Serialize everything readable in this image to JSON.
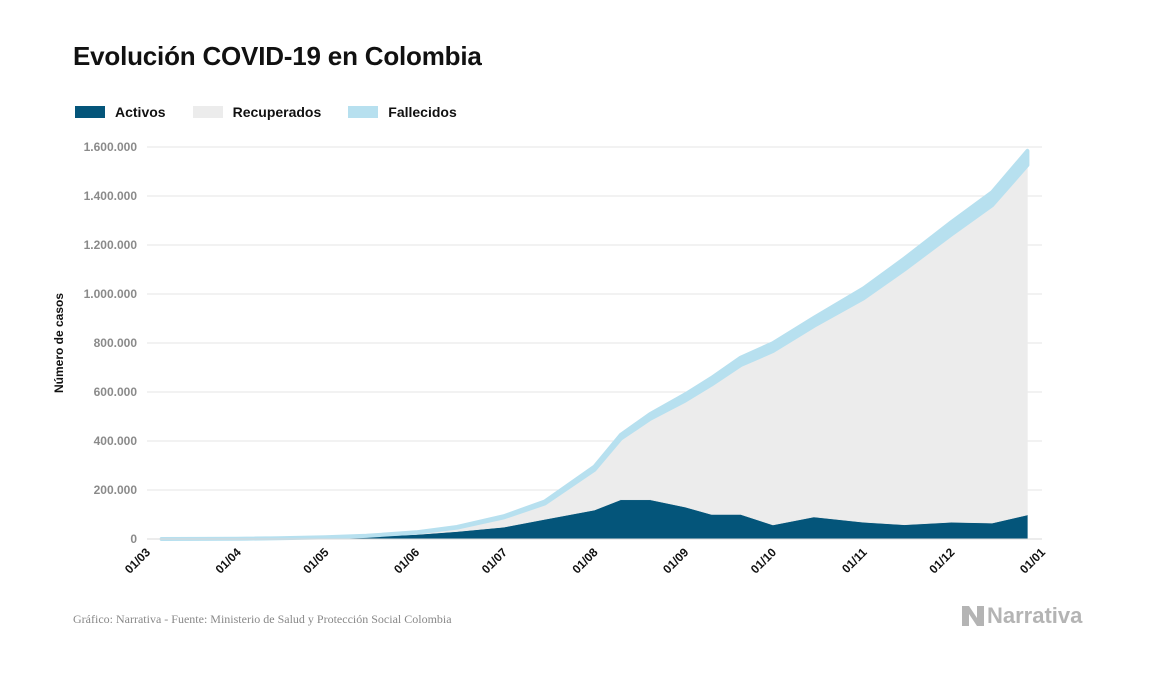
{
  "header": {
    "title": "Evolución COVID-19 en Colombia"
  },
  "legend": [
    {
      "label": "Activos",
      "color": "#04557a"
    },
    {
      "label": "Recuperados",
      "color": "#ececec"
    },
    {
      "label": "Fallecidos",
      "color": "#b7e0ef"
    }
  ],
  "footer": {
    "source": "Gráfico: Narrativa - Fuente: Ministerio de Salud y Protección Social Colombia"
  },
  "brand": {
    "name": "Narrativa",
    "icon": "narrativa-logo-icon"
  },
  "chart_data": {
    "type": "area",
    "title": "Evolución COVID-19 en Colombia",
    "xlabel": "",
    "ylabel": "Número de casos",
    "stacked": true,
    "grid": true,
    "legend_position": "top-left",
    "ylim": [
      0,
      1600000
    ],
    "xlim": [
      "2020-03-01",
      "2021-01-01"
    ],
    "yticks": [
      0,
      200000,
      400000,
      600000,
      800000,
      1000000,
      1200000,
      1400000,
      1600000
    ],
    "ytick_labels": [
      "0",
      "200.000",
      "400.000",
      "600.000",
      "800.000",
      "1.000.000",
      "1.200.000",
      "1.400.000",
      "1.600.000"
    ],
    "xticks": [
      "2020-03-01",
      "2020-04-01",
      "2020-05-01",
      "2020-06-01",
      "2020-07-01",
      "2020-08-01",
      "2020-09-01",
      "2020-10-01",
      "2020-11-01",
      "2020-12-01",
      "2021-01-01"
    ],
    "xtick_labels": [
      "01/03",
      "01/04",
      "01/05",
      "01/06",
      "01/07",
      "01/08",
      "01/09",
      "01/10",
      "01/11",
      "01/12",
      "01/01"
    ],
    "x": [
      "2020-03-06",
      "2020-03-20",
      "2020-04-01",
      "2020-04-15",
      "2020-05-01",
      "2020-05-15",
      "2020-06-01",
      "2020-06-15",
      "2020-07-01",
      "2020-07-15",
      "2020-08-01",
      "2020-08-10",
      "2020-08-20",
      "2020-09-01",
      "2020-09-10",
      "2020-09-20",
      "2020-10-01",
      "2020-10-15",
      "2020-11-01",
      "2020-11-15",
      "2020-12-01",
      "2020-12-15",
      "2020-12-27"
    ],
    "colors": {
      "Activos": "#04557a",
      "Recuperados": "#ececec",
      "Fallecidos": "#b7e0ef"
    },
    "series": [
      {
        "name": "Activos",
        "values": [
          0,
          300,
          1000,
          2500,
          5000,
          9000,
          18000,
          30000,
          48000,
          80000,
          118000,
          160000,
          160000,
          130000,
          100000,
          100000,
          57000,
          90000,
          68000,
          58000,
          68000,
          65000,
          98000
        ]
      },
      {
        "name": "Recuperados",
        "values": [
          0,
          0,
          0,
          300,
          1500,
          3500,
          8000,
          16000,
          40000,
          65000,
          165000,
          250000,
          330000,
          435000,
          530000,
          610000,
          710000,
          780000,
          915000,
          1042000,
          1175000,
          1298000,
          1428000
        ]
      },
      {
        "name": "Fallecidos",
        "values": [
          0,
          0,
          50,
          150,
          300,
          600,
          1200,
          3000,
          4900,
          8000,
          12000,
          15000,
          20000,
          25000,
          27000,
          30000,
          32000,
          33000,
          40000,
          45000,
          50000,
          53000,
          58000
        ]
      }
    ]
  }
}
